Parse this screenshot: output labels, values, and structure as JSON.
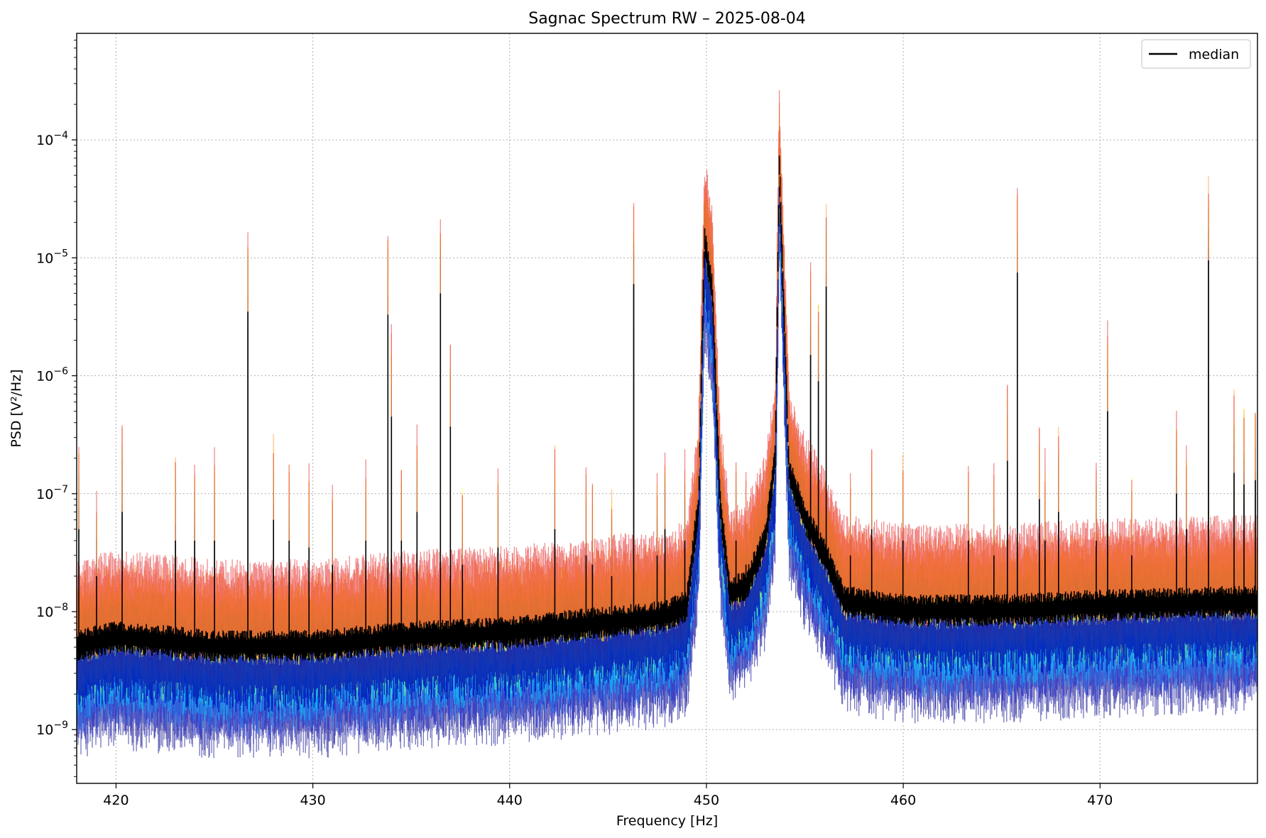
{
  "chart_data": {
    "type": "line",
    "title": "Sagnac Spectrum RW – 2025-08-04",
    "xlabel": "Frequency [Hz]",
    "ylabel": "PSD [V²/Hz]",
    "x_scale": "linear",
    "y_scale": "log",
    "xlim": [
      418,
      478
    ],
    "ylim": [
      3.5e-10,
      0.0008
    ],
    "x_ticks": [
      420,
      430,
      440,
      450,
      460,
      470
    ],
    "x_tick_labels": [
      "420",
      "430",
      "440",
      "450",
      "460",
      "470"
    ],
    "y_ticks": [
      1e-09,
      1e-08,
      1e-07,
      1e-06,
      1e-05,
      0.0001
    ],
    "y_tick_exponents": [
      "−9",
      "−8",
      "−7",
      "−6",
      "−5",
      "−4"
    ],
    "y_tick_base": "10",
    "grid": true,
    "legend": {
      "position": "top-right",
      "entries": [
        "median"
      ]
    },
    "series": [
      {
        "name": "median",
        "color": "#000000",
        "baseline_points": [
          [
            418,
            5e-09
          ],
          [
            420,
            6e-09
          ],
          [
            425,
            5e-09
          ],
          [
            430,
            5e-09
          ],
          [
            435,
            6e-09
          ],
          [
            440,
            6.5e-09
          ],
          [
            445,
            8e-09
          ],
          [
            448,
            9e-09
          ],
          [
            449,
            1.1e-08
          ],
          [
            449.6,
            8e-08
          ],
          [
            449.9,
            1.4e-05
          ],
          [
            450.3,
            5e-06
          ],
          [
            450.7,
            8e-08
          ],
          [
            451.2,
            1.4e-08
          ],
          [
            452,
            1.6e-08
          ],
          [
            453,
            4e-08
          ],
          [
            453.5,
            2e-07
          ],
          [
            453.7,
            6e-05
          ],
          [
            454.2,
            1.5e-07
          ],
          [
            455,
            6e-08
          ],
          [
            456,
            3e-08
          ],
          [
            457,
            1.2e-08
          ],
          [
            460,
            1e-08
          ],
          [
            465,
            1e-08
          ],
          [
            470,
            1.1e-08
          ],
          [
            478,
            1.2e-08
          ]
        ],
        "peaks": [
          [
            418.1,
            5e-08
          ],
          [
            419,
            2e-08
          ],
          [
            420.3,
            7e-08
          ],
          [
            423,
            4e-08
          ],
          [
            424,
            4e-08
          ],
          [
            425,
            4e-08
          ],
          [
            426.7,
            3.5e-06
          ],
          [
            428,
            6e-08
          ],
          [
            428.8,
            4e-08
          ],
          [
            429.8,
            3.5e-08
          ],
          [
            431,
            2.5e-08
          ],
          [
            432.7,
            4e-08
          ],
          [
            433.8,
            3.3e-06
          ],
          [
            434,
            4.5e-07
          ],
          [
            434.5,
            4e-08
          ],
          [
            435.3,
            7e-08
          ],
          [
            436.5,
            5e-06
          ],
          [
            437,
            3.7e-07
          ],
          [
            437.6,
            2.5e-08
          ],
          [
            439.4,
            3.5e-08
          ],
          [
            442.3,
            5e-08
          ],
          [
            443.9,
            3e-08
          ],
          [
            444.2,
            2.5e-08
          ],
          [
            445.2,
            2e-08
          ],
          [
            446.3,
            6e-06
          ],
          [
            447.5,
            3e-08
          ],
          [
            447.9,
            5e-08
          ],
          [
            448.9,
            4e-08
          ],
          [
            451.5,
            4e-08
          ],
          [
            452,
            2.5e-08
          ],
          [
            455.3,
            1.5e-06
          ],
          [
            455.7,
            9e-07
          ],
          [
            456.1,
            5.7e-06
          ],
          [
            457.3,
            3e-08
          ],
          [
            458.4,
            5e-08
          ],
          [
            460,
            4e-08
          ],
          [
            463.3,
            4e-08
          ],
          [
            464.6,
            3e-08
          ],
          [
            465.3,
            1.9e-07
          ],
          [
            465.8,
            7.5e-06
          ],
          [
            466.9,
            9e-08
          ],
          [
            467.2,
            4e-08
          ],
          [
            467.9,
            7e-08
          ],
          [
            469.8,
            4e-08
          ],
          [
            470.4,
            5e-07
          ],
          [
            471.6,
            3e-08
          ],
          [
            473.9,
            1e-07
          ],
          [
            474.4,
            5e-08
          ],
          [
            475.5,
            9.5e-06
          ],
          [
            476.8,
            1.5e-07
          ],
          [
            477.3,
            1.2e-07
          ],
          [
            477.9,
            1.3e-07
          ]
        ]
      }
    ],
    "ensemble": {
      "description_colors": [
        "#00008b",
        "#0a14c8",
        "#1e90ff",
        "#00e5ff",
        "#7fff7f",
        "#ffff33",
        "#ff8c1a",
        "#e31a1c"
      ],
      "low_band_factor": 0.45,
      "high_band_factor": 2.6,
      "peak_overshoot": 4.6
    }
  }
}
